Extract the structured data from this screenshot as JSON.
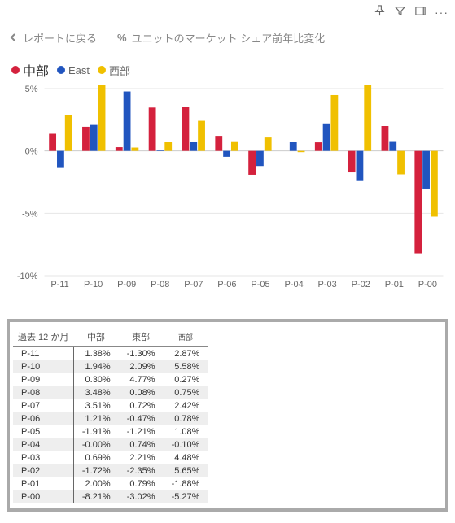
{
  "header": {
    "back_label": "レポートに戻る",
    "title": "ユニットのマーケット シェア前年比変化"
  },
  "legend": {
    "series": [
      {
        "label": "中部",
        "color": "#d4213d"
      },
      {
        "label": "East",
        "color": "#2155bf"
      },
      {
        "label": "西部",
        "color": "#f0c000"
      }
    ]
  },
  "chart": {
    "type": "grouped-bar",
    "background": "#ffffff",
    "grid_color": "#e6e6e6",
    "axis_color": "#cccccc",
    "text_color": "#666666",
    "ylim": [
      -10,
      5
    ],
    "yticks": [
      5,
      0,
      -5,
      -10
    ],
    "ytick_labels": [
      "5%",
      "0%",
      "-5%",
      "-10%"
    ],
    "categories": [
      "P-11",
      "P-10",
      "P-09",
      "P-08",
      "P-07",
      "P-06",
      "P-05",
      "P-04",
      "P-03",
      "P-02",
      "P-01",
      "P-00"
    ],
    "series": [
      {
        "name": "中部",
        "color": "#d4213d",
        "values": [
          1.38,
          1.94,
          0.3,
          3.48,
          3.51,
          1.21,
          -1.91,
          0.0,
          0.69,
          -1.72,
          2.0,
          -8.21
        ]
      },
      {
        "name": "East",
        "color": "#2155bf",
        "values": [
          -1.3,
          2.09,
          4.77,
          0.08,
          0.72,
          -0.47,
          -1.21,
          0.74,
          2.21,
          -2.35,
          0.79,
          -3.02
        ]
      },
      {
        "name": "西部",
        "color": "#f0c000",
        "values": [
          2.87,
          5.58,
          0.27,
          0.75,
          2.42,
          0.78,
          1.08,
          -0.1,
          4.48,
          5.65,
          -1.88,
          -5.27
        ]
      }
    ],
    "bar_group_width": 0.72,
    "font_size": 11
  },
  "table": {
    "header_cells": [
      "過去 12 か月",
      "中部",
      "東部",
      "西部"
    ],
    "rows": [
      [
        "P-11",
        "1.38%",
        "-1.30%",
        "2.87%"
      ],
      [
        "P-10",
        "1.94%",
        "2.09%",
        "5.58%"
      ],
      [
        "P-09",
        "0.30%",
        "4.77%",
        "0.27%"
      ],
      [
        "P-08",
        "3.48%",
        "0.08%",
        "0.75%"
      ],
      [
        "P-07",
        "3.51%",
        "0.72%",
        "2.42%"
      ],
      [
        "P-06",
        "1.21%",
        "-0.47%",
        "0.78%"
      ],
      [
        "P-05",
        "-1.91%",
        "-1.21%",
        "1.08%"
      ],
      [
        "P-04",
        "-0.00%",
        "0.74%",
        "-0.10%"
      ],
      [
        "P-03",
        "0.69%",
        "2.21%",
        "4.48%"
      ],
      [
        "P-02",
        "-1.72%",
        "-2.35%",
        "5.65%"
      ],
      [
        "P-01",
        "2.00%",
        "0.79%",
        "-1.88%"
      ],
      [
        "P-00",
        "-8.21%",
        "-3.02%",
        "-5.27%"
      ]
    ]
  }
}
